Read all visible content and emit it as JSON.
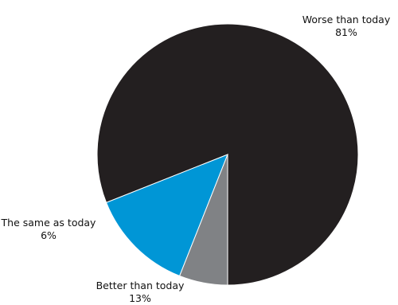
{
  "chart_data": {
    "type": "pie",
    "title": "",
    "categories": [
      "Worse than today",
      "Better than today",
      "The same as today"
    ],
    "values": [
      81,
      13,
      6
    ],
    "value_labels": [
      "81%",
      "13%",
      "6%"
    ],
    "unit": "%",
    "colors": [
      "#231f20",
      "#0096d6",
      "#808285"
    ],
    "start_angle_deg": 90,
    "direction": "clockwise",
    "legend": "none"
  }
}
